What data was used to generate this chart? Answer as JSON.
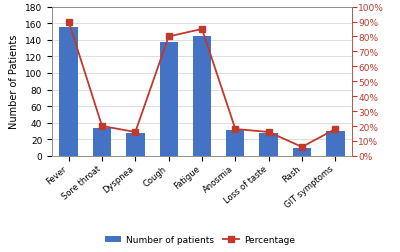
{
  "categories": [
    "Fever",
    "Sore throat",
    "Dyspnea",
    "Cough",
    "Fatigue",
    "Anosmia",
    "Loss of taste",
    "Rash",
    "GIT symptoms"
  ],
  "bar_values": [
    155,
    33,
    27,
    137,
    145,
    31,
    27,
    9,
    30
  ],
  "line_values": [
    90,
    20,
    16,
    80,
    85,
    18,
    16,
    6,
    18
  ],
  "bar_color": "#4472C4",
  "line_color": "#C0392B",
  "ylabel_left": "Number of Patients",
  "ylim_left": [
    0,
    180
  ],
  "ylim_right": [
    0,
    100
  ],
  "yticks_left": [
    0,
    20,
    40,
    60,
    80,
    100,
    120,
    140,
    160,
    180
  ],
  "yticks_right": [
    0,
    10,
    20,
    30,
    40,
    50,
    60,
    70,
    80,
    90,
    100
  ],
  "legend_bar": "Number of patients",
  "legend_line": "Percentage",
  "bg_color": "#FFFFFF",
  "grid_color": "#D0D0D0",
  "marker": "s",
  "marker_size": 4,
  "bar_width": 0.55,
  "figsize": [
    4.0,
    2.53
  ],
  "dpi": 100
}
